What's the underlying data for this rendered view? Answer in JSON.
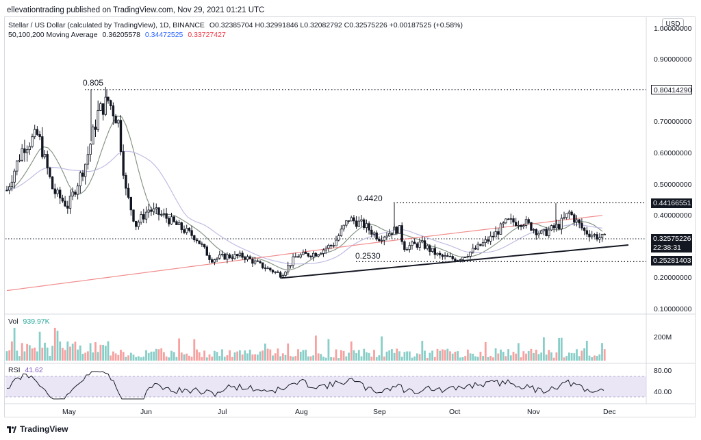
{
  "header": {
    "text": "ellevationtrading published on TradingView.com, Nov 29, 2021 01:21 UTC"
  },
  "legend": {
    "symbol": "Stellar / US Dollar (calculated by TradingView), 1D, BINANCE",
    "ohlc": "O0.32385704 H0.32991846 L0.32082792 C0.32575226 +0.00187525 (+0.58%)",
    "ma_label": "50,100,200 Moving Average",
    "ma50": "0.36205578",
    "ma100": "0.34472525",
    "ma200": "0.33727427",
    "ma_colors": {
      "ma50": "#131722",
      "ma100": "#2962ff",
      "ma200": "#f23645"
    }
  },
  "axis": {
    "currency": "USD",
    "price_ticks": [
      "1.00000000",
      "0.90000000",
      "0.80000000",
      "0.70000000",
      "0.60000000",
      "0.50000000",
      "0.40000000",
      "0.30000000",
      "0.20000000",
      "0.10000000"
    ],
    "vol_tick": "200M",
    "rsi_ticks": [
      "80.00",
      "40.00"
    ],
    "months": [
      "May",
      "Jun",
      "Jul",
      "Aug",
      "Sep",
      "Oct",
      "Nov",
      "Dec"
    ]
  },
  "price_tags": {
    "high_level": "0.80414290",
    "resistance": "0.44166551",
    "last_price": "0.32575226",
    "countdown": "22:38:31",
    "support": "0.25281403"
  },
  "annotations": {
    "peak": "0.805",
    "resistance": "0.4420",
    "support": "0.2530"
  },
  "volume": {
    "label": "Vol",
    "value": "939.97K"
  },
  "rsi": {
    "label": "RSI",
    "value": "41.62"
  },
  "colors": {
    "up": "#26a69a",
    "down": "#ef5350",
    "rsi_band": "#e1dcf2",
    "ma50_line": "#7a8a7a",
    "ma100_line": "#b8b5e0",
    "ma200_line": "#f08080"
  },
  "footer": {
    "brand": "TradingView",
    "logo_icon": "tradingview-logo-icon"
  },
  "chart_data": {
    "type": "candlestick",
    "symbol": "XLMUSD",
    "timeframe": "1D",
    "x_range": [
      "2021-04-01",
      "2021-11-29"
    ],
    "ylim": [
      0.1,
      1.0
    ],
    "levels": [
      {
        "name": "peak",
        "value": 0.8041429
      },
      {
        "name": "resistance",
        "value": 0.44166551
      },
      {
        "name": "support",
        "value": 0.25281403
      }
    ],
    "trendline": {
      "from": [
        "2021-07-20",
        0.2
      ],
      "to": [
        "2021-11-29",
        0.27
      ]
    },
    "close_path": [
      [
        "2021-04-01",
        0.47
      ],
      [
        "2021-04-08",
        0.62
      ],
      [
        "2021-04-14",
        0.66
      ],
      [
        "2021-04-20",
        0.48
      ],
      [
        "2021-04-26",
        0.43
      ],
      [
        "2021-05-03",
        0.57
      ],
      [
        "2021-05-08",
        0.73
      ],
      [
        "2021-05-12",
        0.77
      ],
      [
        "2021-05-16",
        0.7
      ],
      [
        "2021-05-19",
        0.48
      ],
      [
        "2021-05-23",
        0.37
      ],
      [
        "2021-05-28",
        0.42
      ],
      [
        "2021-06-03",
        0.4
      ],
      [
        "2021-06-10",
        0.36
      ],
      [
        "2021-06-16",
        0.33
      ],
      [
        "2021-06-22",
        0.26
      ],
      [
        "2021-06-28",
        0.27
      ],
      [
        "2021-07-05",
        0.27
      ],
      [
        "2021-07-12",
        0.24
      ],
      [
        "2021-07-20",
        0.21
      ],
      [
        "2021-07-26",
        0.27
      ],
      [
        "2021-08-03",
        0.28
      ],
      [
        "2021-08-10",
        0.31
      ],
      [
        "2021-08-16",
        0.39
      ],
      [
        "2021-08-22",
        0.37
      ],
      [
        "2021-08-28",
        0.33
      ],
      [
        "2021-09-05",
        0.36
      ],
      [
        "2021-09-07",
        0.3
      ],
      [
        "2021-09-14",
        0.31
      ],
      [
        "2021-09-21",
        0.27
      ],
      [
        "2021-09-28",
        0.26
      ],
      [
        "2021-10-05",
        0.29
      ],
      [
        "2021-10-12",
        0.33
      ],
      [
        "2021-10-18",
        0.38
      ],
      [
        "2021-10-25",
        0.38
      ],
      [
        "2021-11-01",
        0.34
      ],
      [
        "2021-11-08",
        0.37
      ],
      [
        "2021-11-12",
        0.41
      ],
      [
        "2021-11-18",
        0.35
      ],
      [
        "2021-11-24",
        0.33
      ],
      [
        "2021-11-29",
        0.3258
      ]
    ],
    "moving_averages": [
      {
        "name": "MA50",
        "value": 0.36205578
      },
      {
        "name": "MA100",
        "value": 0.34472525
      },
      {
        "name": "MA200",
        "value": 0.33727427
      }
    ],
    "rsi_last": 41.62,
    "volume_last": "939.97K"
  }
}
